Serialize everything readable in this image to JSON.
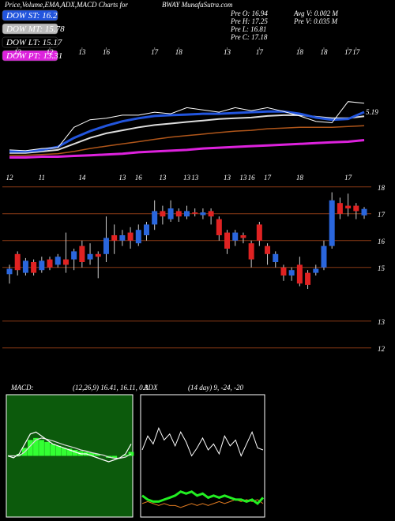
{
  "header": {
    "title": "Price,Volume,EMA,ADX,MACD Charts for",
    "site": "BWAY MunafaSutra.com"
  },
  "legend": [
    {
      "label": "DOW ST: 16.2",
      "color": "#2255dd"
    },
    {
      "label": "DOW MT: 15.78",
      "color": "#bbbbbb"
    },
    {
      "label": "DOW LT: 15.17",
      "color": "#000000"
    },
    {
      "label": "DOW PT: 13.31",
      "color": "#dd22dd"
    }
  ],
  "info": [
    "Pre O: 16.94",
    "Pre H: 17.25",
    "Pre L: 16.81",
    "Pre C: 17.18",
    "Avg V: 0.002 M",
    "Pre V: 0.035 M"
  ],
  "chart_data": [
    {
      "type": "line",
      "annotation": "5.19",
      "x": [
        0,
        2,
        4,
        6,
        8,
        10,
        12,
        14,
        16,
        18,
        20,
        22,
        24,
        26,
        28,
        30,
        32,
        34,
        36,
        38,
        40,
        42,
        44
      ],
      "xlim": [
        0,
        44
      ],
      "xticks": [
        {
          "value": 1,
          "label": "12"
        },
        {
          "value": 5,
          "label": "12"
        },
        {
          "value": 9,
          "label": "13"
        },
        {
          "value": 12,
          "label": "16"
        },
        {
          "value": 18,
          "label": "17"
        },
        {
          "value": 21,
          "label": "18"
        },
        {
          "value": 27,
          "label": "13"
        },
        {
          "value": 31,
          "label": "17"
        },
        {
          "value": 36,
          "label": "18"
        },
        {
          "value": 39,
          "label": "18"
        },
        {
          "value": 42,
          "label": "17"
        },
        {
          "value": 43,
          "label": "17"
        }
      ],
      "ylim": [
        9.2,
        21.9
      ],
      "series": [
        {
          "color": "#dd22dd",
          "width": 3,
          "values": [
            11.52,
            11.52,
            11.6,
            11.6,
            11.68,
            11.75,
            11.83,
            11.91,
            12.06,
            12.14,
            12.22,
            12.3,
            12.45,
            12.53,
            12.61,
            12.69,
            12.76,
            12.84,
            12.92,
            13.0,
            13.08,
            13.15,
            13.31
          ]
        },
        {
          "color": "#b0561a",
          "width": 1.5,
          "values": [
            11.75,
            11.75,
            11.83,
            11.91,
            12.14,
            12.45,
            12.69,
            12.92,
            13.15,
            13.39,
            13.62,
            13.78,
            13.93,
            14.09,
            14.24,
            14.32,
            14.48,
            14.55,
            14.63,
            14.63,
            14.63,
            14.71,
            14.79
          ]
        },
        {
          "color": "#dddddd",
          "width": 2,
          "values": [
            11.99,
            11.99,
            12.14,
            12.3,
            12.92,
            13.54,
            14.01,
            14.32,
            14.63,
            14.87,
            15.02,
            15.18,
            15.33,
            15.49,
            15.57,
            15.64,
            15.8,
            15.88,
            15.88,
            15.72,
            15.57,
            15.57,
            15.78
          ]
        },
        {
          "color": "#2255dd",
          "width": 3,
          "values": [
            12.14,
            12.14,
            12.3,
            12.61,
            13.54,
            14.24,
            14.79,
            15.25,
            15.57,
            15.8,
            15.88,
            15.95,
            16.03,
            16.03,
            16.11,
            16.19,
            16.27,
            16.27,
            16.03,
            15.64,
            15.41,
            15.49,
            16.2
          ]
        },
        {
          "color": "#ffffff",
          "width": 1,
          "values": [
            12.3,
            12.22,
            12.45,
            12.53,
            14.63,
            15.41,
            15.57,
            15.88,
            15.88,
            16.19,
            16.03,
            16.66,
            16.42,
            16.19,
            16.66,
            16.34,
            16.66,
            16.27,
            15.8,
            15.25,
            15.1,
            17.28,
            17.12
          ]
        }
      ]
    },
    {
      "type": "candlestick",
      "categories": [
        "12",
        null,
        null,
        null,
        "11",
        null,
        null,
        null,
        null,
        "14",
        null,
        null,
        null,
        null,
        "13",
        null,
        "16",
        null,
        null,
        "13",
        null,
        null,
        "13",
        "13",
        null,
        null,
        null,
        "13",
        null,
        "13",
        "16",
        null,
        "17",
        null,
        null,
        null,
        "18",
        null,
        null,
        null,
        null,
        null,
        "17",
        null,
        null
      ],
      "open": [
        14.75,
        15.5,
        14.8,
        15.2,
        14.9,
        15.3,
        15.1,
        15.3,
        15.3,
        15.8,
        15.3,
        15.5,
        15.5,
        16.2,
        16.0,
        16.3,
        15.9,
        16.2,
        16.6,
        17.1,
        16.8,
        17.1,
        16.9,
        17.05,
        16.95,
        17.1,
        16.8,
        16.3,
        16.0,
        16.2,
        15.9,
        16.6,
        15.8,
        15.2,
        15.0,
        14.7,
        15.1,
        14.8,
        14.8,
        15.0,
        15.8,
        17.4,
        17.3,
        17.3,
        16.94
      ],
      "high": [
        15.1,
        15.6,
        15.35,
        15.3,
        15.4,
        15.4,
        15.5,
        16.3,
        15.7,
        16.0,
        15.9,
        15.6,
        16.9,
        16.6,
        16.4,
        16.5,
        16.6,
        16.7,
        17.5,
        17.3,
        17.5,
        17.2,
        17.3,
        17.2,
        17.2,
        17.2,
        16.9,
        16.4,
        16.4,
        16.3,
        16.0,
        16.7,
        15.9,
        15.6,
        15.1,
        15.0,
        15.4,
        14.9,
        15.1,
        16.0,
        17.8,
        17.6,
        17.75,
        17.4,
        17.25
      ],
      "low": [
        14.4,
        14.7,
        14.7,
        14.7,
        14.8,
        14.9,
        15.0,
        14.8,
        14.9,
        15.0,
        15.1,
        14.6,
        15.2,
        15.5,
        15.8,
        15.7,
        15.8,
        16.0,
        16.4,
        16.6,
        16.7,
        16.7,
        16.8,
        16.9,
        16.8,
        16.6,
        16.0,
        15.5,
        15.8,
        15.9,
        15.0,
        15.8,
        15.1,
        15.0,
        14.5,
        14.5,
        14.3,
        14.2,
        14.7,
        14.9,
        15.7,
        16.8,
        16.9,
        16.8,
        16.81
      ],
      "close": [
        14.95,
        14.9,
        15.25,
        14.8,
        15.25,
        15.0,
        15.4,
        15.1,
        15.6,
        15.2,
        15.5,
        15.4,
        16.1,
        16.0,
        16.2,
        16.0,
        16.4,
        16.6,
        17.1,
        16.9,
        17.2,
        16.9,
        17.1,
        17.0,
        17.05,
        16.9,
        16.2,
        15.7,
        16.3,
        16.1,
        15.3,
        16.0,
        15.5,
        15.5,
        14.7,
        14.9,
        14.4,
        14.35,
        14.95,
        15.8,
        17.5,
        17.0,
        17.2,
        17.1,
        17.18
      ],
      "up_color": "#2a66dd",
      "down_color": "#e02222",
      "ylim": [
        10.7,
        18.2
      ],
      "yticks": [
        12,
        13,
        15,
        16,
        17,
        18
      ],
      "grid": true
    },
    {
      "type": "macd",
      "label": "MACD:",
      "params": "(12,26,9) 16.41, 16.11, 0.3",
      "x": [
        0,
        2,
        4,
        6,
        8,
        10,
        12,
        14,
        16,
        18,
        20,
        22,
        24,
        26,
        28,
        30,
        32,
        34,
        36,
        38,
        40,
        42,
        44
      ],
      "xlim": [
        0,
        44
      ],
      "ylim": [
        -1.5,
        1.5
      ],
      "series": [
        {
          "type": "bar",
          "color": "#33ff33",
          "values": [
            0,
            0,
            0.05,
            0.2,
            0.4,
            0.45,
            0.4,
            0.35,
            0.3,
            0.25,
            0.2,
            0.18,
            0.15,
            0.12,
            0.1,
            0.08,
            0.05,
            0,
            -0.05,
            -0.05,
            0,
            0.03,
            0.1
          ]
        },
        {
          "color": "#dddddd",
          "values": [
            0,
            0,
            0,
            0.1,
            0.25,
            0.4,
            0.45,
            0.42,
            0.38,
            0.33,
            0.28,
            0.24,
            0.2,
            0.15,
            0.12,
            0.08,
            0.05,
            0.02,
            -0.03,
            -0.06,
            -0.06,
            -0.03,
            0.05
          ]
        },
        {
          "color": "#ffffff",
          "values": [
            0,
            -0.05,
            0.05,
            0.3,
            0.55,
            0.6,
            0.5,
            0.4,
            0.3,
            0.25,
            0.2,
            0.15,
            0.1,
            0.05,
            0.05,
            0,
            -0.05,
            -0.1,
            -0.15,
            -0.1,
            -0.05,
            0.05,
            0.3
          ]
        }
      ]
    },
    {
      "type": "line",
      "label": "ADX",
      "params": "(14 day) 9, -24, -20",
      "x": [
        0,
        2,
        4,
        6,
        8,
        10,
        12,
        14,
        16,
        18,
        20,
        22,
        24,
        26,
        28,
        30,
        32,
        34,
        36,
        38,
        40,
        42,
        44
      ],
      "xlim": [
        0,
        44
      ],
      "ylim": [
        0,
        60
      ],
      "series": [
        {
          "color": "#ffffff",
          "width": 1,
          "values": [
            33,
            40,
            36,
            44,
            38,
            41,
            35,
            42,
            37,
            30,
            34,
            39,
            33,
            36,
            31,
            40,
            35,
            38,
            30,
            36,
            42,
            34,
            33
          ]
        },
        {
          "color": "#e07a20",
          "width": 1,
          "values": [
            6,
            7,
            6,
            5,
            6,
            5,
            5,
            4,
            5,
            6,
            5,
            6,
            5,
            6,
            7,
            6,
            7,
            8,
            7,
            8,
            7,
            8,
            6
          ]
        },
        {
          "color": "#22ee22",
          "width": 3,
          "values": [
            10,
            8,
            7,
            7,
            8,
            9,
            10,
            12,
            11,
            12,
            10,
            11,
            9,
            10,
            9,
            10,
            9,
            8,
            8,
            7,
            8,
            6,
            9
          ]
        }
      ]
    }
  ]
}
